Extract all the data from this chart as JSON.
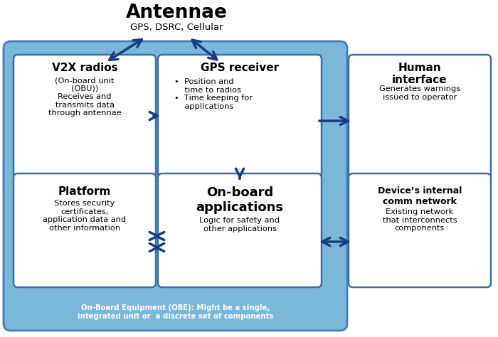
{
  "fig_width": 7.0,
  "fig_height": 4.74,
  "dpi": 100,
  "bg_color": "#ffffff",
  "blue_bg": "#7ab8d9",
  "box_ec": "#3a6ea5",
  "arrow_color": "#1a3a8a",
  "antenna_title": "Antennae",
  "antenna_sub": "GPS, DSRC, Cellular",
  "v2x_title": "V2X radios",
  "v2x_sub": "(On-board unit\n(OBU))\nReceives and\ntransmits data\nthrough antennae",
  "gps_title": "GPS receiver",
  "gps_sub": "•  Position and\n    time to radios\n•  Time keeping for\n    applications",
  "platform_title": "Platform",
  "platform_sub": "Stores security\ncertificates,\napplication data and\nother information",
  "onboard_title": "On-board\napplications",
  "onboard_sub": "Logic for safety and\nother applications",
  "human_title": "Human\ninterface",
  "human_sub": "Generates warnings\nissued to operator",
  "device_title": "Device’s internal\ncomm network",
  "device_sub": "Existing network\nthat interconnects\ncomponents",
  "obe_label": "On-Board Equipment (OBE): Might be a single,\nintegrated unit or  a discrete set of components"
}
